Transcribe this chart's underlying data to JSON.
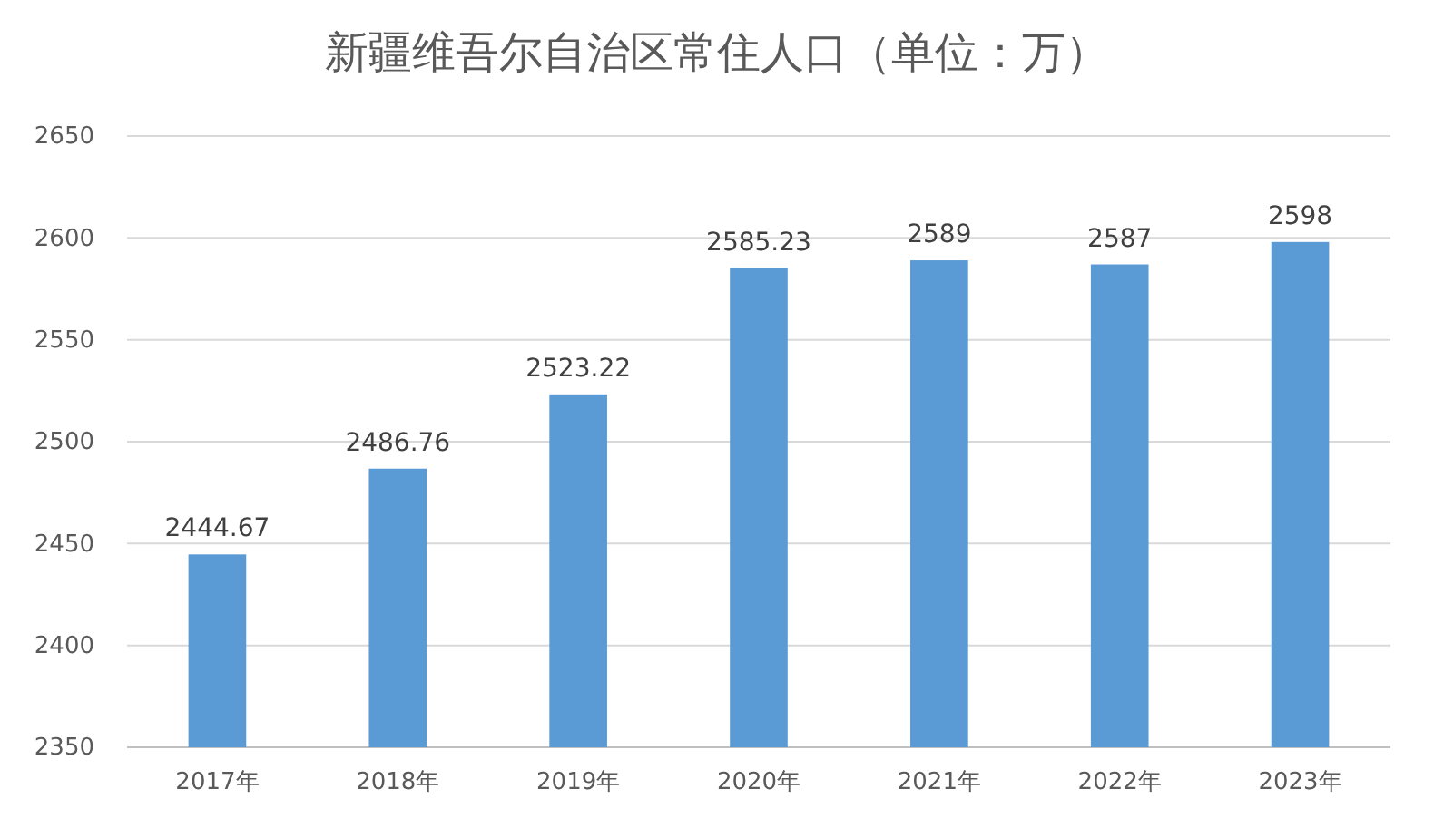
{
  "chart_data": {
    "type": "bar",
    "title": "新疆维吾尔自治区常住人口（单位：万）",
    "categories": [
      "2017年",
      "2018年",
      "2019年",
      "2020年",
      "2021年",
      "2022年",
      "2023年"
    ],
    "values": [
      2444.67,
      2486.76,
      2523.22,
      2585.23,
      2589,
      2587,
      2598
    ],
    "color": "#5b9bd5",
    "ylim": [
      2350,
      2650
    ],
    "yticks": [
      2350,
      2400,
      2450,
      2500,
      2550,
      2600,
      2650
    ],
    "grid": "y",
    "data_labels": true
  }
}
